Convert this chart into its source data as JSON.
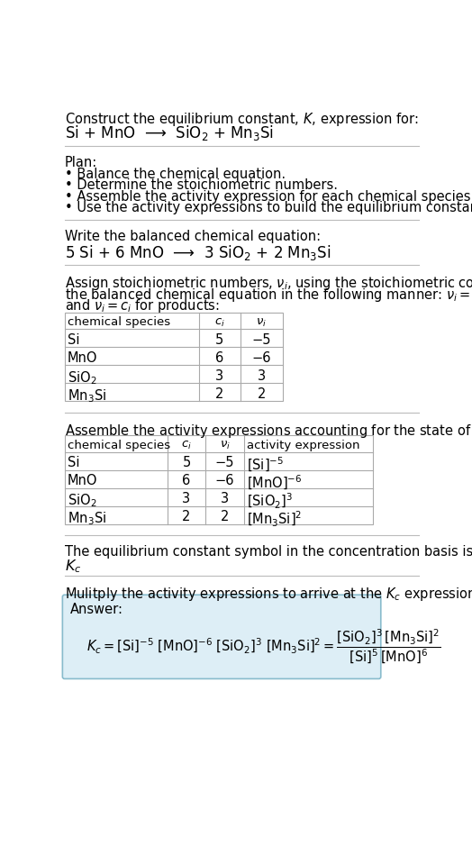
{
  "title_line1": "Construct the equilibrium constant, $K$, expression for:",
  "title_line2": "Si + MnO  ⟶  SiO$_2$ + Mn$_3$Si",
  "plan_header": "Plan:",
  "plan_items": [
    "• Balance the chemical equation.",
    "• Determine the stoichiometric numbers.",
    "• Assemble the activity expression for each chemical species.",
    "• Use the activity expressions to build the equilibrium constant expression."
  ],
  "balanced_header": "Write the balanced chemical equation:",
  "balanced_eq": "5 Si + 6 MnO  ⟶  3 SiO$_2$ + 2 Mn$_3$Si",
  "stoich_header_parts": [
    "Assign stoichiometric numbers, $\\nu_i$, using the stoichiometric coefficients, $c_i$, from",
    "the balanced chemical equation in the following manner: $\\nu_i = -c_i$ for reactants",
    "and $\\nu_i = c_i$ for products:"
  ],
  "table1_headers": [
    "chemical species",
    "$c_i$",
    "$\\nu_i$"
  ],
  "table1_rows": [
    [
      "Si",
      "5",
      "−5"
    ],
    [
      "MnO",
      "6",
      "−6"
    ],
    [
      "SiO$_2$",
      "3",
      "3"
    ],
    [
      "Mn$_3$Si",
      "2",
      "2"
    ]
  ],
  "activity_header": "Assemble the activity expressions accounting for the state of matter and $\\nu_i$:",
  "table2_headers": [
    "chemical species",
    "$c_i$",
    "$\\nu_i$",
    "activity expression"
  ],
  "table2_rows": [
    [
      "Si",
      "5",
      "−5",
      "[Si]$^{-5}$"
    ],
    [
      "MnO",
      "6",
      "−6",
      "[MnO]$^{-6}$"
    ],
    [
      "SiO$_2$",
      "3",
      "3",
      "[SiO$_2$]$^3$"
    ],
    [
      "Mn$_3$Si",
      "2",
      "2",
      "[Mn$_3$Si]$^2$"
    ]
  ],
  "kc_symbol_header": "The equilibrium constant symbol in the concentration basis is:",
  "kc_symbol": "$K_c$",
  "multiply_header": "Mulitply the activity expressions to arrive at the $K_c$ expression:",
  "answer_label": "Answer:",
  "bg_color": "#ffffff",
  "answer_bg": "#ddeef6",
  "answer_border": "#88bbcc",
  "text_color": "#000000",
  "font_size": 10.5,
  "small_font": 9.5,
  "line_color": "#bbbbbb"
}
